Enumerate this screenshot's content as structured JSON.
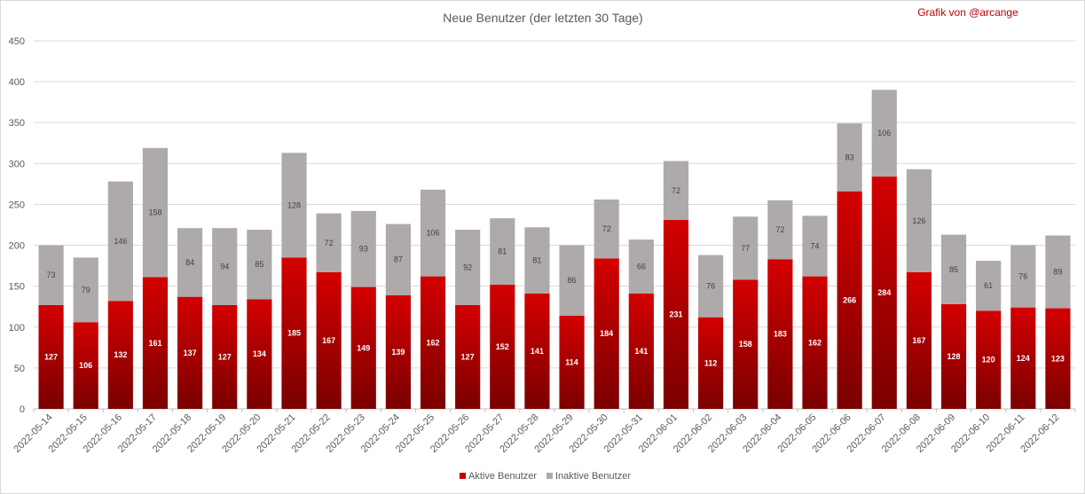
{
  "chart_data": {
    "type": "bar",
    "stacked": true,
    "title": "Neue Benutzer (der letzten 30 Tage)",
    "annotation": "Grafik von @arcange",
    "ylim": [
      0,
      450
    ],
    "yticks": [
      0,
      50,
      100,
      150,
      200,
      250,
      300,
      350,
      400,
      450
    ],
    "grid": true,
    "legend_position": "bottom",
    "categories": [
      "2022-05-14",
      "2022-05-15",
      "2022-05-16",
      "2022-05-17",
      "2022-05-18",
      "2022-05-19",
      "2022-05-20",
      "2022-05-21",
      "2022-05-22",
      "2022-05-23",
      "2022-05-24",
      "2022-05-25",
      "2022-05-26",
      "2022-05-27",
      "2022-05-28",
      "2022-05-29",
      "2022-05-30",
      "2022-05-31",
      "2022-06-01",
      "2022-06-02",
      "2022-06-03",
      "2022-06-04",
      "2022-06-05",
      "2022-06-06",
      "2022-06-07",
      "2022-06-08",
      "2022-06-09",
      "2022-06-10",
      "2022-06-11",
      "2022-06-12"
    ],
    "series": [
      {
        "name": "Aktive Benutzer",
        "color": "#c00000",
        "values": [
          127,
          106,
          132,
          161,
          137,
          127,
          134,
          185,
          167,
          149,
          139,
          162,
          127,
          152,
          141,
          114,
          184,
          141,
          231,
          112,
          158,
          183,
          162,
          266,
          284,
          167,
          128,
          120,
          124,
          123
        ]
      },
      {
        "name": "Inaktive Benutzer",
        "color": "#aeaaaa",
        "values": [
          73,
          79,
          146,
          158,
          84,
          94,
          85,
          128,
          72,
          93,
          87,
          106,
          92,
          81,
          81,
          86,
          72,
          66,
          72,
          76,
          77,
          72,
          74,
          83,
          106,
          126,
          85,
          61,
          76,
          89
        ]
      }
    ]
  }
}
